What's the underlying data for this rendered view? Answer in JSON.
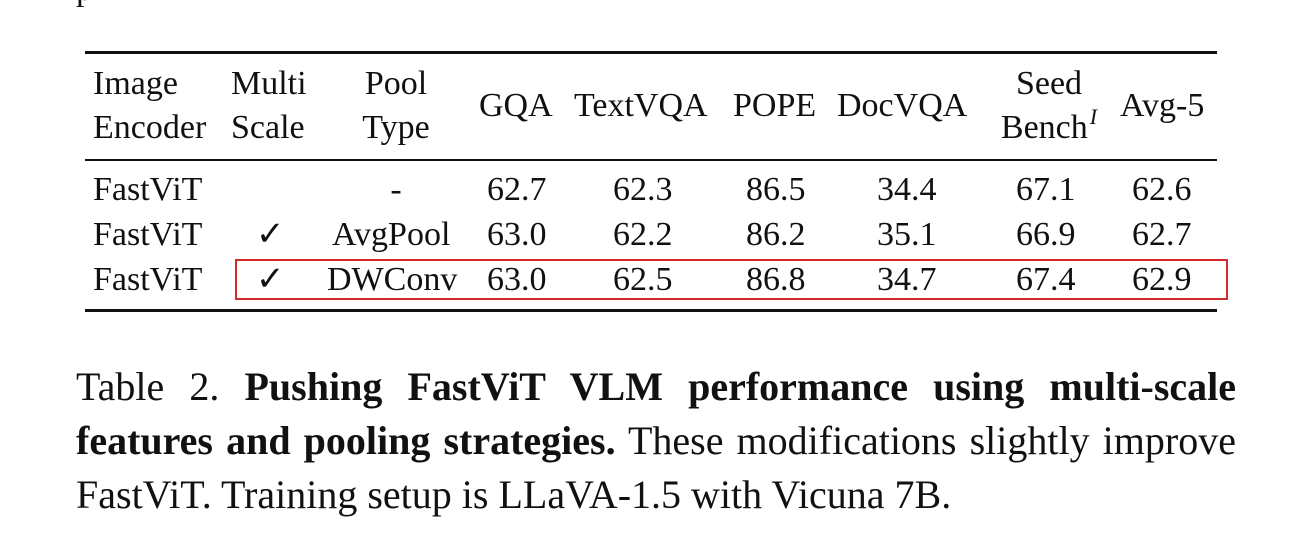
{
  "page_fragment": "p",
  "table": {
    "headers": {
      "image_encoder": [
        "Image",
        "Encoder"
      ],
      "multi_scale": [
        "Multi",
        "Scale"
      ],
      "pool_type": [
        "Pool",
        "Type"
      ],
      "gqa": "GQA",
      "textvqa": "TextVQA",
      "pope": "POPE",
      "docvqa": "DocVQA",
      "seed_bench": [
        "Seed",
        "Bench"
      ],
      "seed_bench_sup": "I",
      "avg5": "Avg-5"
    },
    "rows": [
      {
        "encoder": "FastViT",
        "multi_scale": "",
        "pool": "-",
        "gqa": "62.7",
        "textvqa": "62.3",
        "pope": "86.5",
        "docvqa": "34.4",
        "seed": "67.1",
        "avg5": "62.6"
      },
      {
        "encoder": "FastViT",
        "multi_scale": "✓",
        "pool": "AvgPool",
        "gqa": "63.0",
        "textvqa": "62.2",
        "pope": "86.2",
        "docvqa": "35.1",
        "seed": "66.9",
        "avg5": "62.7"
      },
      {
        "encoder": "FastViT",
        "multi_scale": "✓",
        "pool": "DWConv",
        "gqa": "63.0",
        "textvqa": "62.5",
        "pope": "86.8",
        "docvqa": "34.7",
        "seed": "67.4",
        "avg5": "62.9"
      }
    ],
    "highlight_color": "#d32b2b"
  },
  "caption": {
    "label": "Table 2. ",
    "bold": "Pushing FastViT VLM performance using multi-scale features and pooling strategies.",
    "text": " These modifications slightly improve FastViT. Training setup is LLaVA-1.5 with Vicuna 7B."
  }
}
